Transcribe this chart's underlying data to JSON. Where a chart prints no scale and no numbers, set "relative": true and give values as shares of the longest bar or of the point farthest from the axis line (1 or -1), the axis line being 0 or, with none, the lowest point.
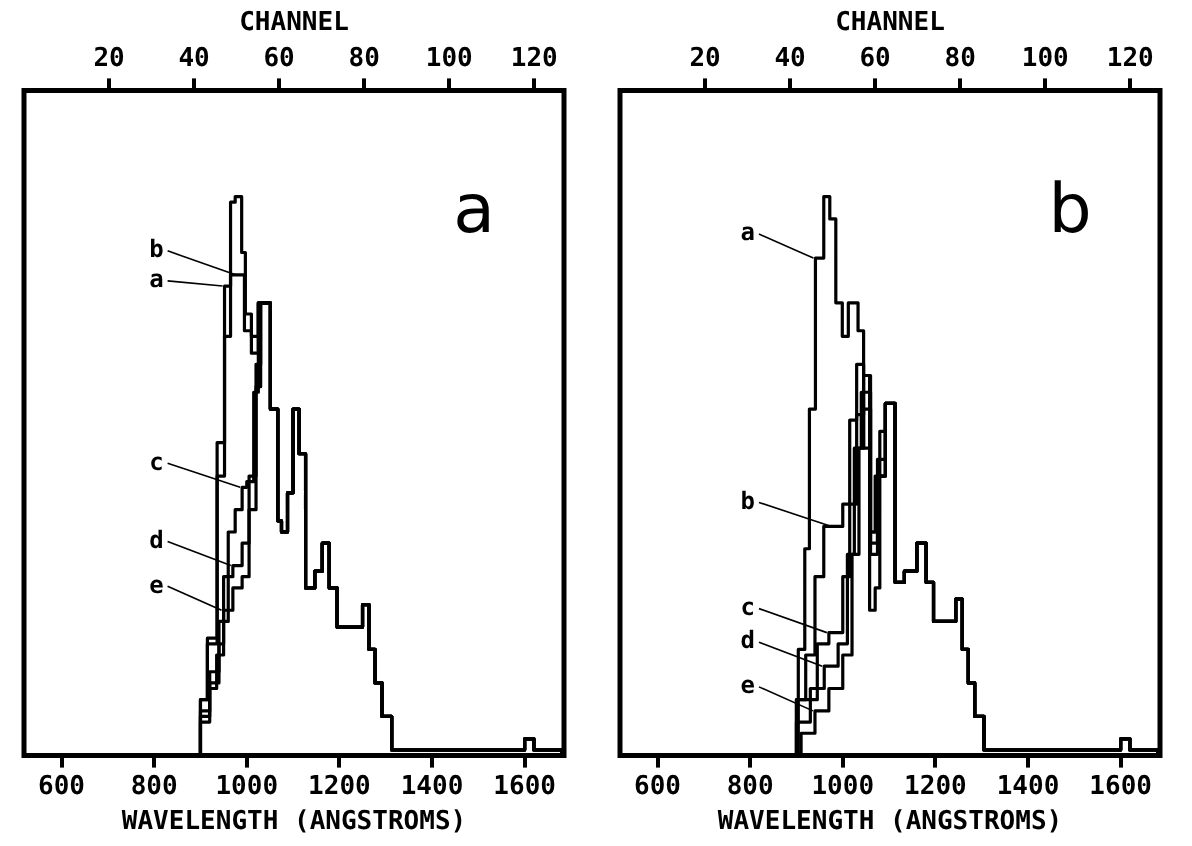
{
  "chart_data": [
    {
      "type": "step",
      "xlabel": "WAVELENGTH (ANGSTROMS)",
      "x2label": "CHANNEL",
      "xlim": [
        519,
        1685
      ],
      "xticks": [
        600,
        800,
        1000,
        1200,
        1400,
        1600
      ],
      "x2lim": [
        0,
        127
      ],
      "x2ticks": [
        20,
        40,
        60,
        80,
        100,
        120
      ],
      "relative": true,
      "legend": false,
      "grid": false,
      "annotations": [
        "a",
        {
          "text": "a",
          "x": 952,
          "y": 0.84
        },
        {
          "text": "b",
          "x": 980,
          "y": 0.86
        },
        {
          "text": "c",
          "x": 990,
          "y": 0.48
        },
        {
          "text": "d",
          "x": 970,
          "y": 0.34
        },
        {
          "text": "e",
          "x": 950,
          "y": 0.26
        }
      ],
      "series": [
        {
          "color": "#000000",
          "x": [
            850,
            870,
            900,
            915,
            936,
            952,
            965,
            975,
            989,
            997,
            1010,
            1025,
            1040,
            1051,
            1067,
            1075,
            1088,
            1100,
            1113,
            1127,
            1147,
            1163,
            1178,
            1195,
            1230,
            1250,
            1264,
            1277,
            1292,
            1313,
            1325,
            1580,
            1600,
            1620,
            1680
          ],
          "values": [
            0,
            0,
            0.1,
            0.21,
            0.56,
            0.84,
            0.99,
            1,
            0.9,
            0.79,
            0.75,
            0.81,
            0.81,
            0.62,
            0.42,
            0.4,
            0.47,
            0.62,
            0.54,
            0.3,
            0.33,
            0.38,
            0.3,
            0.23,
            0.23,
            0.27,
            0.19,
            0.13,
            0.07,
            0.01,
            0.01,
            0.01,
            0.03,
            0.01,
            0
          ]
        },
        {
          "color": "#000000",
          "x": [
            850,
            870,
            900,
            915,
            936,
            952,
            965,
            980,
            995,
            1010,
            1025,
            1040,
            1051,
            1067,
            1075,
            1088,
            1100,
            1113,
            1127,
            1147,
            1163,
            1178,
            1195,
            1230,
            1250,
            1264,
            1277,
            1292,
            1313,
            1325,
            1580,
            1600,
            1620,
            1680
          ],
          "values": [
            0,
            0,
            0.1,
            0.2,
            0.5,
            0.75,
            0.86,
            0.86,
            0.76,
            0.72,
            0.81,
            0.81,
            0.62,
            0.42,
            0.4,
            0.47,
            0.62,
            0.54,
            0.3,
            0.33,
            0.38,
            0.3,
            0.23,
            0.23,
            0.27,
            0.19,
            0.13,
            0.07,
            0.01,
            0.01,
            0.01,
            0.03,
            0.01,
            0
          ]
        },
        {
          "color": "#000000",
          "x": [
            870,
            900,
            920,
            940,
            960,
            975,
            990,
            1000,
            1015,
            1025,
            1040,
            1051,
            1067,
            1075,
            1088,
            1100,
            1113,
            1127,
            1147,
            1163,
            1178,
            1195,
            1230,
            1250,
            1264,
            1277,
            1292,
            1313,
            1325,
            1580,
            1600,
            1620,
            1680
          ],
          "values": [
            0,
            0.08,
            0.15,
            0.24,
            0.4,
            0.44,
            0.48,
            0.49,
            0.65,
            0.81,
            0.81,
            0.62,
            0.42,
            0.4,
            0.47,
            0.62,
            0.54,
            0.3,
            0.33,
            0.38,
            0.3,
            0.23,
            0.23,
            0.27,
            0.19,
            0.13,
            0.07,
            0.01,
            0.01,
            0.01,
            0.03,
            0.01,
            0
          ]
        },
        {
          "color": "#000000",
          "x": [
            870,
            900,
            920,
            940,
            950,
            970,
            990,
            1005,
            1020,
            1030,
            1040,
            1051,
            1067,
            1075,
            1088,
            1100,
            1113,
            1127,
            1147,
            1163,
            1178,
            1195,
            1230,
            1250,
            1264,
            1277,
            1292,
            1313,
            1325,
            1580,
            1600,
            1620,
            1680
          ],
          "values": [
            0,
            0.07,
            0.13,
            0.2,
            0.32,
            0.34,
            0.38,
            0.5,
            0.7,
            0.81,
            0.81,
            0.62,
            0.42,
            0.4,
            0.47,
            0.62,
            0.54,
            0.3,
            0.33,
            0.38,
            0.3,
            0.23,
            0.23,
            0.27,
            0.19,
            0.13,
            0.07,
            0.01,
            0.01,
            0.01,
            0.03,
            0.01,
            0
          ]
        },
        {
          "color": "#000000",
          "x": [
            870,
            900,
            920,
            935,
            950,
            970,
            990,
            1005,
            1020,
            1030,
            1040,
            1051,
            1067,
            1075,
            1088,
            1100,
            1113,
            1127,
            1147,
            1163,
            1178,
            1195,
            1230,
            1250,
            1264,
            1277,
            1292,
            1313,
            1325,
            1580,
            1600,
            1620,
            1680
          ],
          "values": [
            0,
            0.06,
            0.12,
            0.18,
            0.26,
            0.3,
            0.32,
            0.44,
            0.66,
            0.81,
            0.81,
            0.62,
            0.42,
            0.4,
            0.47,
            0.62,
            0.54,
            0.3,
            0.33,
            0.38,
            0.3,
            0.23,
            0.23,
            0.27,
            0.19,
            0.13,
            0.07,
            0.01,
            0.01,
            0.01,
            0.03,
            0.01,
            0
          ]
        }
      ]
    },
    {
      "type": "step",
      "xlabel": "WAVELENGTH (ANGSTROMS)",
      "x2label": "CHANNEL",
      "xlim": [
        519,
        1685
      ],
      "xticks": [
        600,
        800,
        1000,
        1200,
        1400,
        1600
      ],
      "x2lim": [
        0,
        127
      ],
      "x2ticks": [
        20,
        40,
        60,
        80,
        100,
        120
      ],
      "relative": true,
      "legend": false,
      "grid": false,
      "annotations": [
        "b",
        {
          "text": "a",
          "x": 941,
          "y": 0.89
        },
        {
          "text": "b",
          "x": 980,
          "y": 0.41
        },
        {
          "text": "c",
          "x": 970,
          "y": 0.22
        },
        {
          "text": "d",
          "x": 960,
          "y": 0.16
        },
        {
          "text": "e",
          "x": 940,
          "y": 0.08
        }
      ],
      "series": [
        {
          "color": "#000000",
          "x": [
            850,
            870,
            904,
            918,
            928,
            941,
            959,
            972,
            985,
            999,
            1012,
            1026,
            1033,
            1045,
            1058,
            1070,
            1080,
            1092,
            1113,
            1133,
            1160,
            1180,
            1196,
            1230,
            1244,
            1258,
            1271,
            1285,
            1305,
            1580,
            1600,
            1620,
            1680
          ],
          "values": [
            0,
            0,
            0.19,
            0.37,
            0.62,
            0.89,
            1,
            0.96,
            0.81,
            0.75,
            0.81,
            0.81,
            0.76,
            0.55,
            0.26,
            0.3,
            0.5,
            0.63,
            0.31,
            0.33,
            0.38,
            0.31,
            0.24,
            0.24,
            0.28,
            0.19,
            0.13,
            0.07,
            0.01,
            0.01,
            0.03,
            0.01,
            0
          ]
        },
        {
          "color": "#000000",
          "x": [
            870,
            900,
            920,
            940,
            959,
            980,
            1000,
            1015,
            1030,
            1045,
            1058,
            1070,
            1080,
            1092,
            1113,
            1133,
            1160,
            1180,
            1196,
            1230,
            1244,
            1258,
            1271,
            1285,
            1305,
            1580,
            1600,
            1620,
            1680
          ],
          "values": [
            0,
            0.1,
            0.18,
            0.32,
            0.41,
            0.41,
            0.45,
            0.6,
            0.7,
            0.68,
            0.4,
            0.5,
            0.58,
            0.63,
            0.31,
            0.33,
            0.38,
            0.31,
            0.24,
            0.24,
            0.28,
            0.19,
            0.13,
            0.07,
            0.01,
            0.01,
            0.03,
            0.01,
            0
          ]
        },
        {
          "color": "#000000",
          "x": [
            870,
            900,
            945,
            970,
            1000,
            1015,
            1030,
            1045,
            1060,
            1075,
            1092,
            1113,
            1133,
            1160,
            1180,
            1196,
            1230,
            1244,
            1258,
            1271,
            1285,
            1305,
            1580,
            1600,
            1620,
            1680
          ],
          "values": [
            0,
            0.1,
            0.2,
            0.22,
            0.32,
            0.45,
            0.61,
            0.68,
            0.4,
            0.53,
            0.63,
            0.31,
            0.33,
            0.38,
            0.31,
            0.24,
            0.24,
            0.28,
            0.19,
            0.13,
            0.07,
            0.01,
            0.01,
            0.03,
            0.01,
            0
          ]
        },
        {
          "color": "#000000",
          "x": [
            870,
            900,
            930,
            960,
            990,
            1010,
            1025,
            1040,
            1060,
            1075,
            1092,
            1113,
            1133,
            1160,
            1180,
            1196,
            1230,
            1244,
            1258,
            1271,
            1285,
            1305,
            1580,
            1600,
            1620,
            1680
          ],
          "values": [
            0,
            0.06,
            0.12,
            0.16,
            0.2,
            0.36,
            0.55,
            0.65,
            0.38,
            0.5,
            0.63,
            0.31,
            0.33,
            0.38,
            0.31,
            0.24,
            0.24,
            0.28,
            0.19,
            0.13,
            0.07,
            0.01,
            0.01,
            0.03,
            0.01,
            0
          ]
        },
        {
          "color": "#000000",
          "x": [
            880,
            910,
            940,
            970,
            1000,
            1020,
            1035,
            1045,
            1060,
            1075,
            1092,
            1113,
            1133,
            1160,
            1180,
            1196,
            1230,
            1244,
            1258,
            1271,
            1285,
            1305,
            1580,
            1600,
            1620,
            1680
          ],
          "values": [
            0,
            0.04,
            0.08,
            0.12,
            0.18,
            0.36,
            0.55,
            0.62,
            0.36,
            0.5,
            0.63,
            0.31,
            0.33,
            0.38,
            0.31,
            0.24,
            0.24,
            0.28,
            0.19,
            0.13,
            0.07,
            0.01,
            0.01,
            0.03,
            0.01,
            0
          ]
        }
      ]
    }
  ]
}
